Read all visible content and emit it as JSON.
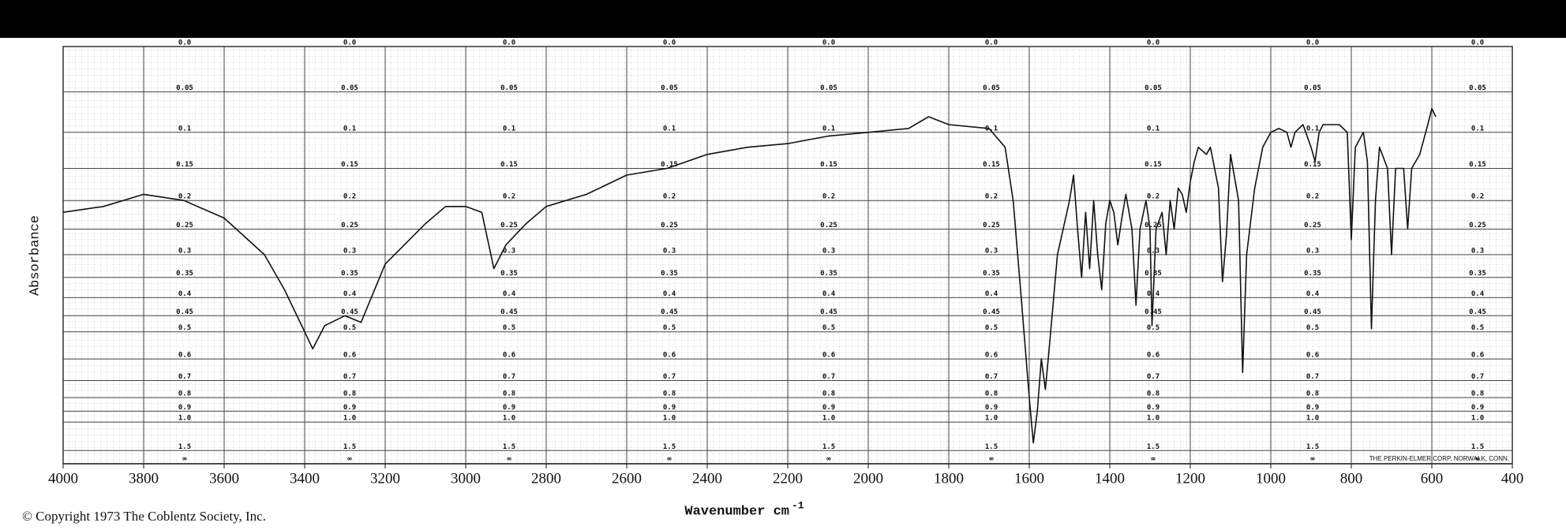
{
  "chart_data": {
    "type": "line",
    "y_label": "Absorbance",
    "x_label": "Wavenumber cm",
    "x_label_exponent": "-1",
    "copyright": "© Copyright 1973  The Coblentz Society, Inc.",
    "paper_label": "THE PERKIN-ELMER CORP. NORWALK, CONN.",
    "bottom_label": "∞",
    "color": "#111111",
    "grid": true,
    "yscale": "absorbance",
    "xlim": [
      4000,
      400
    ],
    "ylim": [
      0,
      1.5
    ],
    "xticks": [
      4000,
      3800,
      3600,
      3400,
      3200,
      3000,
      2800,
      2600,
      2400,
      2200,
      2000,
      1800,
      1600,
      1400,
      1200,
      1000,
      800,
      600,
      400
    ],
    "yticks": [
      {
        "value": 0,
        "label": "0.0"
      },
      0.05,
      0.1,
      0.15,
      0.2,
      0.25,
      0.3,
      0.35,
      0.4,
      0.45,
      0.5,
      0.6,
      0.7,
      0.8,
      0.9,
      {
        "value": 1,
        "label": "1.0"
      },
      1.5
    ],
    "x": [
      4000,
      3900,
      3800,
      3700,
      3600,
      3500,
      3450,
      3400,
      3380,
      3350,
      3300,
      3260,
      3200,
      3100,
      3050,
      3000,
      2960,
      2930,
      2900,
      2850,
      2800,
      2700,
      2600,
      2500,
      2400,
      2300,
      2200,
      2100,
      2000,
      1900,
      1850,
      1800,
      1700,
      1660,
      1640,
      1620,
      1600,
      1590,
      1580,
      1570,
      1560,
      1550,
      1530,
      1500,
      1490,
      1480,
      1470,
      1460,
      1450,
      1440,
      1430,
      1420,
      1410,
      1400,
      1390,
      1380,
      1370,
      1360,
      1345,
      1335,
      1325,
      1310,
      1300,
      1295,
      1285,
      1270,
      1260,
      1250,
      1240,
      1230,
      1220,
      1210,
      1200,
      1190,
      1180,
      1160,
      1150,
      1130,
      1120,
      1110,
      1100,
      1080,
      1070,
      1060,
      1040,
      1020,
      1000,
      980,
      960,
      950,
      940,
      920,
      900,
      890,
      880,
      870,
      850,
      830,
      810,
      800,
      790,
      770,
      760,
      750,
      740,
      730,
      710,
      700,
      690,
      670,
      660,
      650,
      630,
      610,
      600,
      590
    ],
    "values": [
      0.22,
      0.21,
      0.19,
      0.2,
      0.23,
      0.3,
      0.38,
      0.5,
      0.56,
      0.48,
      0.45,
      0.47,
      0.32,
      0.24,
      0.21,
      0.21,
      0.22,
      0.33,
      0.28,
      0.24,
      0.21,
      0.19,
      0.16,
      0.15,
      0.13,
      0.12,
      0.115,
      0.105,
      0.1,
      0.095,
      0.08,
      0.09,
      0.095,
      0.12,
      0.2,
      0.4,
      0.8,
      1.3,
      0.9,
      0.6,
      0.75,
      0.55,
      0.3,
      0.2,
      0.16,
      0.25,
      0.35,
      0.22,
      0.33,
      0.2,
      0.3,
      0.38,
      0.24,
      0.2,
      0.22,
      0.28,
      0.23,
      0.19,
      0.25,
      0.42,
      0.25,
      0.2,
      0.25,
      0.48,
      0.25,
      0.22,
      0.3,
      0.2,
      0.25,
      0.18,
      0.19,
      0.22,
      0.17,
      0.14,
      0.12,
      0.13,
      0.12,
      0.18,
      0.36,
      0.26,
      0.13,
      0.2,
      0.66,
      0.3,
      0.18,
      0.12,
      0.1,
      0.095,
      0.1,
      0.12,
      0.1,
      0.09,
      0.12,
      0.14,
      0.1,
      0.09,
      0.09,
      0.09,
      0.1,
      0.27,
      0.12,
      0.1,
      0.14,
      0.49,
      0.2,
      0.12,
      0.15,
      0.3,
      0.15,
      0.15,
      0.25,
      0.15,
      0.13,
      0.09,
      0.07,
      0.08
    ]
  }
}
